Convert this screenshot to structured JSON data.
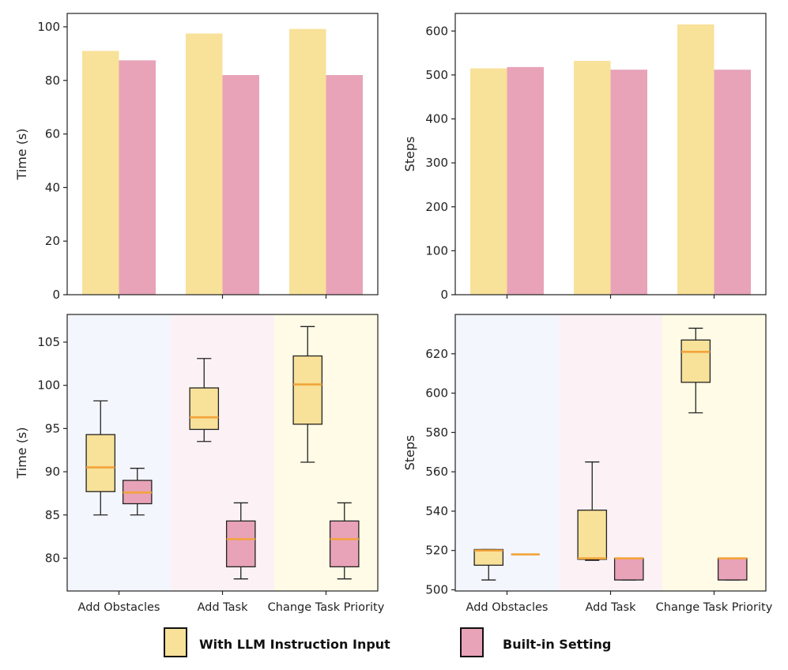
{
  "colors": {
    "llm": "#f8e199",
    "builtin": "#e8a3b8",
    "median": "#f2a33a",
    "bg_obstacles": "#f3f6fc",
    "bg_task": "#fcf2f5",
    "bg_priority": "#fffbe6"
  },
  "legend": {
    "llm_label": "With LLM Instruction Input",
    "builtin_label": "Built-in Setting"
  },
  "chart_data": [
    {
      "type": "bar",
      "id": "time-bar",
      "categories": [
        "Add Obstacles",
        "Add Task",
        "Change Task Priority"
      ],
      "show_category_labels": false,
      "series": [
        {
          "name": "With LLM Instruction Input",
          "values": [
            91,
            97.5,
            99.2
          ]
        },
        {
          "name": "Built-in Setting",
          "values": [
            87.5,
            82,
            82
          ]
        }
      ],
      "ylabel": "Time (s)",
      "ylim": [
        0,
        105
      ],
      "yticks": [
        0,
        20,
        40,
        60,
        80,
        100
      ],
      "grid": false
    },
    {
      "type": "bar",
      "id": "steps-bar",
      "categories": [
        "Add Obstacles",
        "Add Task",
        "Change Task Priority"
      ],
      "show_category_labels": false,
      "series": [
        {
          "name": "With LLM Instruction Input",
          "values": [
            515,
            532,
            615
          ]
        },
        {
          "name": "Built-in Setting",
          "values": [
            518,
            512,
            512
          ]
        }
      ],
      "ylabel": "Steps",
      "ylim": [
        0,
        640
      ],
      "yticks": [
        0,
        100,
        200,
        300,
        400,
        500,
        600
      ],
      "grid": false
    },
    {
      "type": "box",
      "id": "time-box",
      "categories": [
        "Add Obstacles",
        "Add Task",
        "Change Task Priority"
      ],
      "show_category_labels": true,
      "series": [
        {
          "name": "With LLM Instruction Input",
          "boxes": [
            {
              "min": 85,
              "q1": 87.7,
              "median": 90.5,
              "q3": 94.3,
              "max": 98.2
            },
            {
              "min": 93.5,
              "q1": 94.9,
              "median": 96.3,
              "q3": 99.7,
              "max": 103.1
            },
            {
              "min": 91.1,
              "q1": 95.5,
              "median": 100.1,
              "q3": 103.4,
              "max": 106.8
            }
          ]
        },
        {
          "name": "Built-in Setting",
          "boxes": [
            {
              "min": 85,
              "q1": 86.3,
              "median": 87.6,
              "q3": 89,
              "max": 90.4
            },
            {
              "min": 77.6,
              "q1": 79,
              "median": 82.2,
              "q3": 84.3,
              "max": 86.4
            },
            {
              "min": 77.6,
              "q1": 79,
              "median": 82.2,
              "q3": 84.3,
              "max": 86.4
            }
          ]
        }
      ],
      "ylabel": "Time (s)",
      "ylim": [
        76.2,
        108.2
      ],
      "yticks": [
        80,
        85,
        90,
        95,
        100,
        105
      ],
      "grid": false
    },
    {
      "type": "box",
      "id": "steps-box",
      "categories": [
        "Add Obstacles",
        "Add Task",
        "Change Task Priority"
      ],
      "show_category_labels": true,
      "series": [
        {
          "name": "With LLM Instruction Input",
          "boxes": [
            {
              "min": 505,
              "q1": 512.5,
              "median": 520,
              "q3": 520.5,
              "max": 520.5
            },
            {
              "min": 515,
              "q1": 515.5,
              "median": 516,
              "q3": 540.5,
              "max": 565
            },
            {
              "min": 590,
              "q1": 605.5,
              "median": 621,
              "q3": 627,
              "max": 633
            }
          ]
        },
        {
          "name": "Built-in Setting",
          "boxes": [
            {
              "min": 518,
              "q1": 518,
              "median": 518,
              "q3": 518,
              "max": 518
            },
            {
              "min": 505,
              "q1": 505,
              "median": 516,
              "q3": 516,
              "max": 516
            },
            {
              "min": 505,
              "q1": 505,
              "median": 516,
              "q3": 516,
              "max": 516
            }
          ]
        }
      ],
      "ylabel": "Steps",
      "ylim": [
        499.4,
        640
      ],
      "yticks": [
        500,
        520,
        540,
        560,
        580,
        600,
        620
      ],
      "grid": false
    }
  ]
}
